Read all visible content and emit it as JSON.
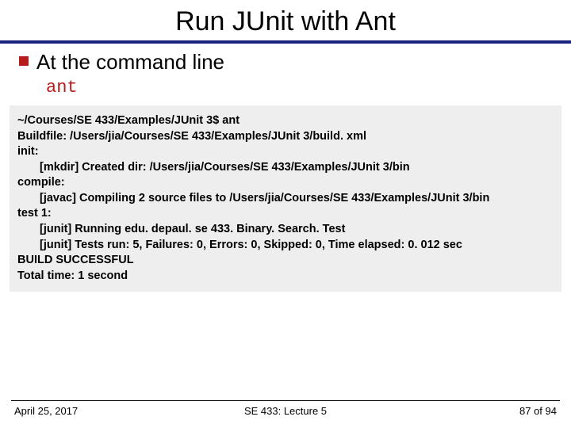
{
  "title": "Run JUnit with Ant",
  "bullet": {
    "marker_color": "#b71c1c",
    "text": "At the command line"
  },
  "command_text": "ant",
  "code": {
    "bg_color": "#eeeeee",
    "lines": {
      "l0": "~/Courses/SE 433/Examples/JUnit 3$ ant",
      "l1": "Buildfile: /Users/jia/Courses/SE 433/Examples/JUnit 3/build. xml",
      "l2": "init:",
      "l3": "[mkdir] Created dir: /Users/jia/Courses/SE 433/Examples/JUnit 3/bin",
      "l4": "compile:",
      "l5": "[javac] Compiling 2 source files to /Users/jia/Courses/SE 433/Examples/JUnit 3/bin",
      "l6": "test 1:",
      "l7": "[junit] Running edu. depaul. se 433. Binary. Search. Test",
      "l8": "[junit] Tests run: 5, Failures: 0, Errors: 0, Skipped: 0, Time elapsed: 0. 012 sec",
      "l9": "BUILD SUCCESSFUL",
      "l10": "Total time: 1 second"
    }
  },
  "footer": {
    "left": "April 25, 2017",
    "center": "SE 433: Lecture 5",
    "right": "87 of 94"
  },
  "colors": {
    "rule": "#1a237e",
    "accent": "#b71c1c",
    "text": "#000000",
    "bg": "#ffffff"
  }
}
